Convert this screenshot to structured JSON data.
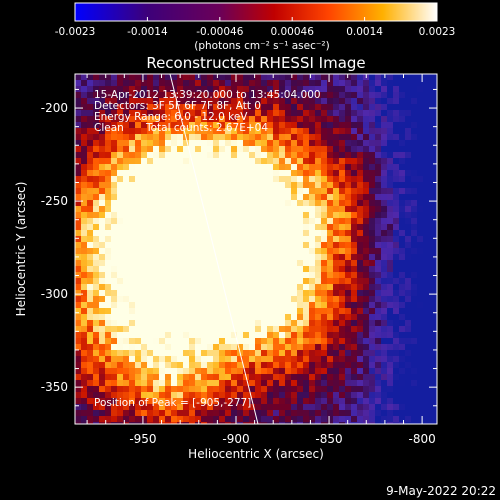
{
  "colorbar": {
    "tick_labels": [
      "-0.0023",
      "-0.0014",
      "-0.00046",
      "0.00046",
      "0.0014",
      "0.0023"
    ],
    "unit_label": "(photons cm⁻² s⁻¹ asec⁻²)"
  },
  "title": "Reconstructed RHESSI Image",
  "overlay": {
    "time_range": "15-Apr-2012 13:39:20.000 to 13:45:04.000",
    "detectors": "Detectors: 3F 5F 6F 7F 8F, Att 0",
    "energy": "Energy Range: 6.0 - 12.0 keV",
    "clean": "Clean",
    "total_counts": "Total counts: 2.67E+04",
    "peak": "Position of Peak = [-905,-277]"
  },
  "x_axis": {
    "label": "Heliocentric X (arcsec)",
    "ticks": [
      "-950",
      "-900",
      "-850",
      "-800"
    ]
  },
  "y_axis": {
    "label": "Heliocentric Y (arcsec)",
    "ticks": [
      "-200",
      "-250",
      "-300",
      "-350"
    ]
  },
  "footer_date": "9-May-2022 20:22",
  "image_peak": {
    "x": -905,
    "y": -277
  }
}
